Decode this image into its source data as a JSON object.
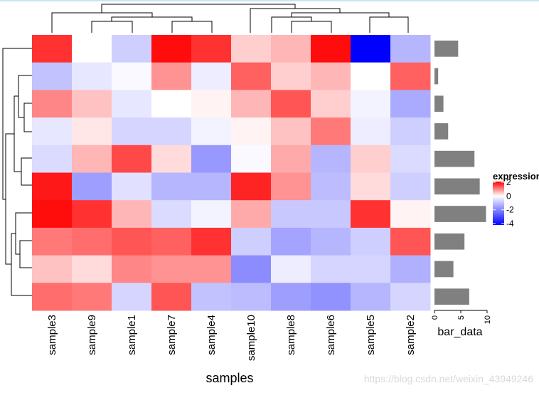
{
  "chart_data": {
    "type": "heatmap",
    "xlabel": "samples",
    "columns": [
      "sample3",
      "sample9",
      "sample1",
      "sample7",
      "sample4",
      "sample10",
      "sample8",
      "sample6",
      "sample5",
      "sample2"
    ],
    "matrix": [
      [
        1.7,
        0.0,
        -0.8,
        2.0,
        1.7,
        0.4,
        0.6,
        2.0,
        -4.2,
        -1.2
      ],
      [
        -1.0,
        -0.4,
        -0.1,
        0.9,
        -0.3,
        1.3,
        0.4,
        0.6,
        0.0,
        1.3
      ],
      [
        1.0,
        0.5,
        -0.4,
        0.0,
        0.1,
        0.6,
        1.4,
        0.4,
        -0.2,
        -1.4
      ],
      [
        -0.4,
        0.2,
        -0.7,
        -0.7,
        -0.2,
        0.1,
        0.5,
        1.1,
        -0.3,
        -0.8
      ],
      [
        -0.6,
        0.6,
        1.5,
        0.3,
        -1.7,
        -0.1,
        0.7,
        -1.2,
        0.4,
        -0.6
      ],
      [
        1.9,
        -1.6,
        -0.5,
        -1.2,
        -1.2,
        1.8,
        0.9,
        -1.1,
        0.3,
        -0.8
      ],
      [
        2.0,
        1.7,
        0.6,
        -0.6,
        -0.2,
        0.7,
        -0.9,
        -0.9,
        1.7,
        0.1
      ],
      [
        1.1,
        1.2,
        1.4,
        1.3,
        1.7,
        -0.8,
        -1.5,
        -1.2,
        -0.8,
        1.4
      ],
      [
        0.5,
        0.3,
        1.0,
        0.9,
        0.9,
        -1.9,
        -0.3,
        -0.7,
        -0.7,
        -1.3
      ],
      [
        1.2,
        1.1,
        -0.7,
        1.4,
        -1.0,
        -1.1,
        -1.6,
        -1.8,
        -1.2,
        -0.7
      ]
    ],
    "bar_data": {
      "label": "bar_data",
      "values": [
        4.5,
        0.7,
        1.7,
        2.6,
        7.6,
        8.6,
        9.8,
        5.7,
        3.6,
        6.6
      ],
      "ticks": [
        0,
        5,
        10
      ],
      "xlim": [
        0,
        10
      ],
      "color": "#808080"
    },
    "legend": {
      "title": "expression",
      "ticks": [
        2,
        0,
        -2,
        -4
      ],
      "range": [
        -4.2,
        2.1
      ],
      "low_color": "#0000ff",
      "mid_color": "#ffffff",
      "high_color": "#ff0000"
    },
    "watermark": "https://blog.csdn.net/weixin_43949246"
  }
}
